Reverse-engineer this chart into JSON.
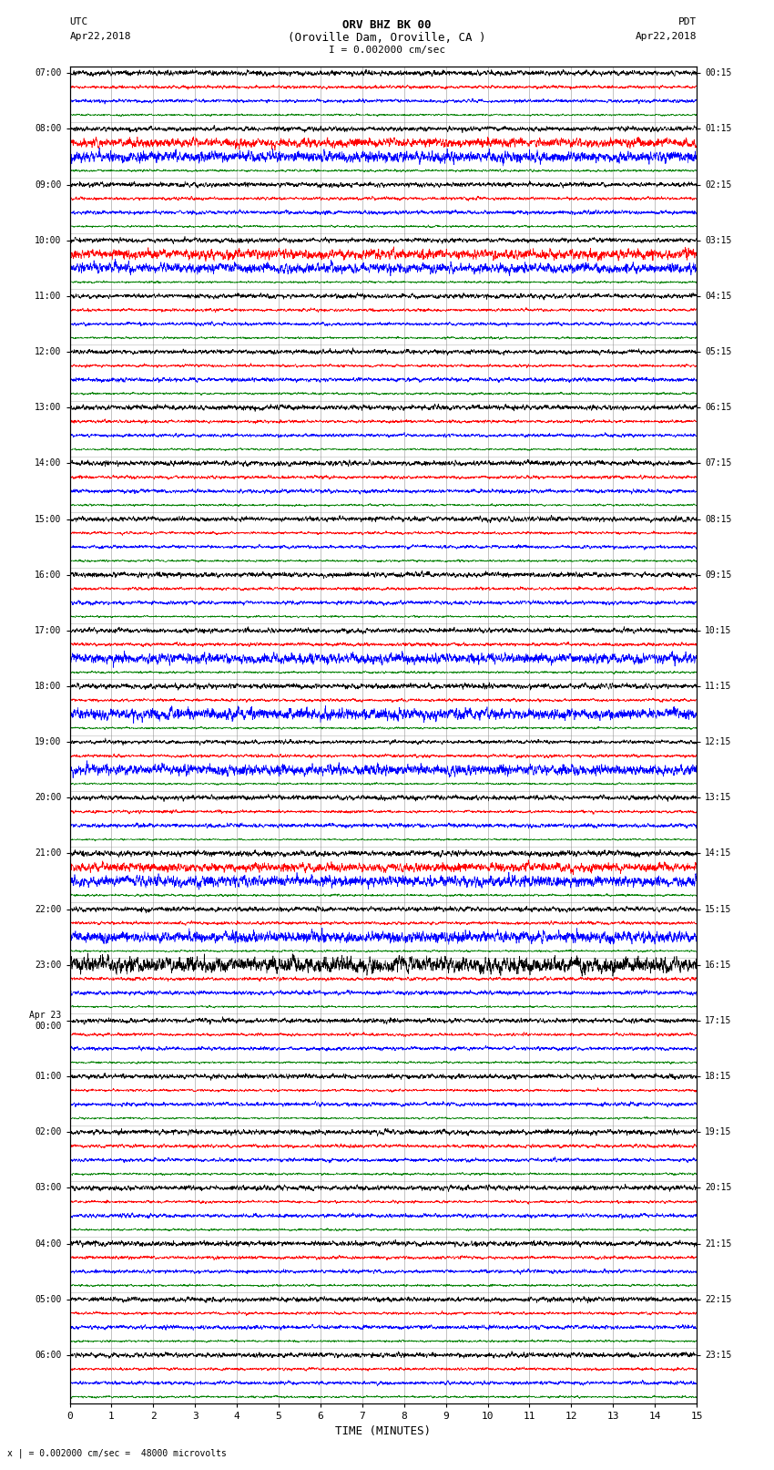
{
  "title_line1": "ORV BHZ BK 00",
  "title_line2": "(Oroville Dam, Oroville, CA )",
  "scale_label": "I = 0.002000 cm/sec",
  "left_header": "UTC",
  "left_date": "Apr22,2018",
  "right_header": "PDT",
  "right_date": "Apr22,2018",
  "bottom_label": "TIME (MINUTES)",
  "bottom_note": "x | = 0.002000 cm/sec =  48000 microvolts",
  "trace_colors": [
    "black",
    "red",
    "blue",
    "green"
  ],
  "background_color": "white",
  "grid_color": "#888888",
  "fig_width": 8.5,
  "fig_height": 16.13,
  "noise_amps": [
    0.28,
    0.18,
    0.22,
    0.12
  ],
  "left_utc_labels": [
    "07:00",
    "08:00",
    "09:00",
    "10:00",
    "11:00",
    "12:00",
    "13:00",
    "14:00",
    "15:00",
    "16:00",
    "17:00",
    "18:00",
    "19:00",
    "20:00",
    "21:00",
    "22:00",
    "23:00",
    "Apr 23\n00:00",
    "01:00",
    "02:00",
    "03:00",
    "04:00",
    "05:00",
    "06:00"
  ],
  "right_pdt_labels": [
    "00:15",
    "01:15",
    "02:15",
    "03:15",
    "04:15",
    "05:15",
    "06:15",
    "07:15",
    "08:15",
    "09:15",
    "10:15",
    "11:15",
    "12:15",
    "13:15",
    "14:15",
    "15:15",
    "16:15",
    "17:15",
    "18:15",
    "19:15",
    "20:15",
    "21:15",
    "22:15",
    "23:15"
  ],
  "n_hour_groups": 24,
  "x_min": 0,
  "x_max": 15,
  "n_points": 3000
}
